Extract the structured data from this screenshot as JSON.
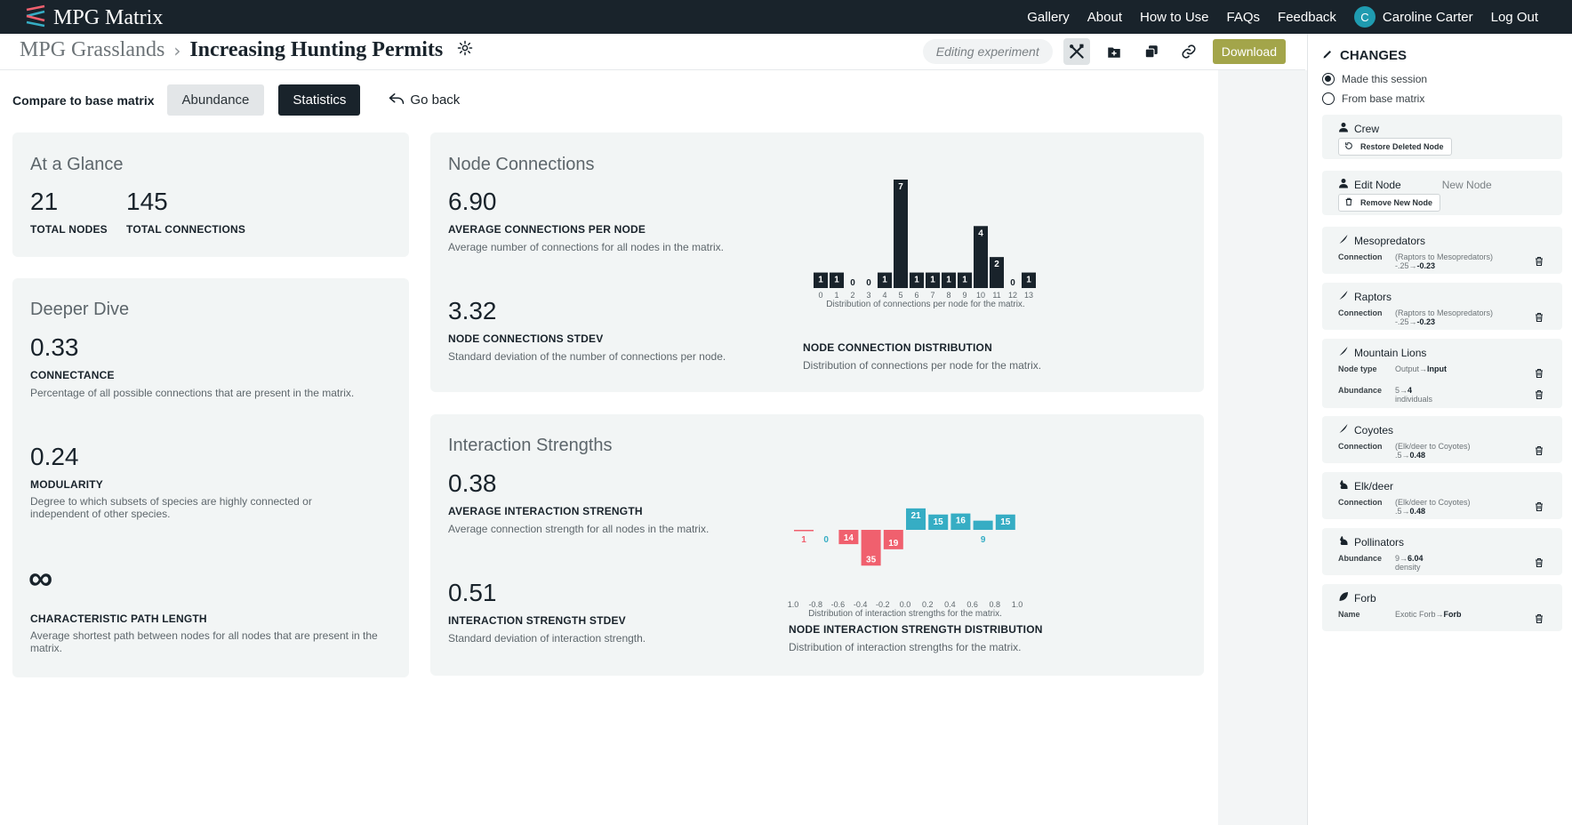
{
  "app": {
    "title": "MPG Matrix",
    "nav": [
      "Gallery",
      "About",
      "How to Use",
      "FAQs",
      "Feedback"
    ],
    "user_initial": "C",
    "user_name": "Caroline Carter",
    "logout": "Log Out"
  },
  "header": {
    "project": "MPG Grasslands",
    "experiment": "Increasing Hunting Permits",
    "status": "Editing experiment",
    "download": "Download"
  },
  "compare": {
    "label": "Compare to base matrix",
    "abundance": "Abundance",
    "statistics": "Statistics",
    "go_back": "Go back"
  },
  "glance": {
    "title": "At a Glance",
    "total_nodes_value": "21",
    "total_nodes_label": "TOTAL NODES",
    "total_connections_value": "145",
    "total_connections_label": "TOTAL CONNECTIONS"
  },
  "deeper": {
    "title": "Deeper Dive",
    "connectance_value": "0.33",
    "connectance_label": "CONNECTANCE",
    "connectance_desc": "Percentage of all possible connections that are present in the matrix.",
    "modularity_value": "0.24",
    "modularity_label": "MODULARITY",
    "modularity_desc": "Degree to which subsets of species are highly connected or independent of other species.",
    "path_value": "∞",
    "path_label": "CHARACTERISTIC PATH LENGTH",
    "path_desc": "Average shortest path between nodes for all nodes that are present in the matrix."
  },
  "node_connections": {
    "title": "Node Connections",
    "avg_value": "6.90",
    "avg_label": "AVERAGE CONNECTIONS PER NODE",
    "avg_desc": "Average number of connections for all nodes in the matrix.",
    "stdev_value": "3.32",
    "stdev_label": "NODE CONNECTIONS STDEV",
    "stdev_desc": "Standard deviation of the number of connections per node.",
    "chart_title": "NODE CONNECTION DISTRIBUTION",
    "chart_desc": "Distribution of connections per node for the matrix."
  },
  "interaction": {
    "title": "Interaction Strengths",
    "avg_value": "0.38",
    "avg_label": "AVERAGE INTERACTION STRENGTH",
    "avg_desc": "Average connection strength for all nodes in the matrix.",
    "stdev_value": "0.51",
    "stdev_label": "INTERACTION STRENGTH STDEV",
    "stdev_desc": "Standard deviation of interaction strength.",
    "chart_title": "NODE INTERACTION STRENGTH DISTRIBUTION",
    "chart_desc": "Distribution of interaction strengths for the matrix."
  },
  "chart_data": [
    {
      "type": "bar",
      "categories": [
        "0",
        "1",
        "2",
        "3",
        "4",
        "5",
        "6",
        "7",
        "8",
        "9",
        "10",
        "11",
        "12",
        "13"
      ],
      "values": [
        1,
        1,
        0,
        0,
        1,
        7,
        1,
        1,
        1,
        1,
        4,
        2,
        0,
        1
      ],
      "xlabel": "Distribution of connections per node for the matrix.",
      "ylim": [
        0,
        7
      ],
      "color": "#19232b"
    },
    {
      "type": "bar",
      "categories": [
        "1.0",
        "-0.8",
        "-0.6",
        "-0.4",
        "-0.2",
        "0.0",
        "0.2",
        "0.4",
        "0.6",
        "0.8",
        "1.0"
      ],
      "bin_values": [
        -1,
        0,
        -14,
        -35,
        -19,
        21,
        15,
        16,
        9,
        15
      ],
      "labels": [
        "1",
        "0",
        "14",
        "35",
        "19",
        "21",
        "15",
        "16",
        "9",
        "15"
      ],
      "xlabel": "Distribution of interaction strengths for the matrix.",
      "negative_color": "#f0606e",
      "positive_color": "#36adc4"
    }
  ],
  "changes": {
    "title": "CHANGES",
    "option_session": "Made this session",
    "option_base": "From base matrix",
    "items": [
      {
        "name": "Crew",
        "button": "Restore Deleted Node"
      },
      {
        "name": "Edit Node",
        "extra": "New Node",
        "button": "Remove New Node"
      },
      {
        "name": "Mesopredators",
        "label": "Connection",
        "val1": "(Raptors to Mesopredators)",
        "val2a": "-.25→",
        "val2b": "-0.23"
      },
      {
        "name": "Raptors",
        "label": "Connection",
        "val1": "(Raptors to Mesopredators)",
        "val2a": "-.25→",
        "val2b": "-0.23"
      },
      {
        "name": "Mountain Lions",
        "label": "Node type",
        "val1a": "Output→",
        "val1b": "Input",
        "label2": "Abundance",
        "val2a": "5→",
        "val2b": "4",
        "val3": "individuals"
      },
      {
        "name": "Coyotes",
        "label": "Connection",
        "val1": "(Elk/deer to Coyotes)",
        "val2a": ".5→",
        "val2b": "0.48"
      },
      {
        "name": "Elk/deer",
        "label": "Connection",
        "val1": "(Elk/deer to Coyotes)",
        "val2a": ".5→",
        "val2b": "0.48"
      },
      {
        "name": "Pollinators",
        "label": "Abundance",
        "val1a": "9→",
        "val1b": "6.04",
        "val2": "density"
      },
      {
        "name": "Forb",
        "label": "Name",
        "val1a": "Exotic Forb→",
        "val1b": "Forb"
      }
    ]
  }
}
